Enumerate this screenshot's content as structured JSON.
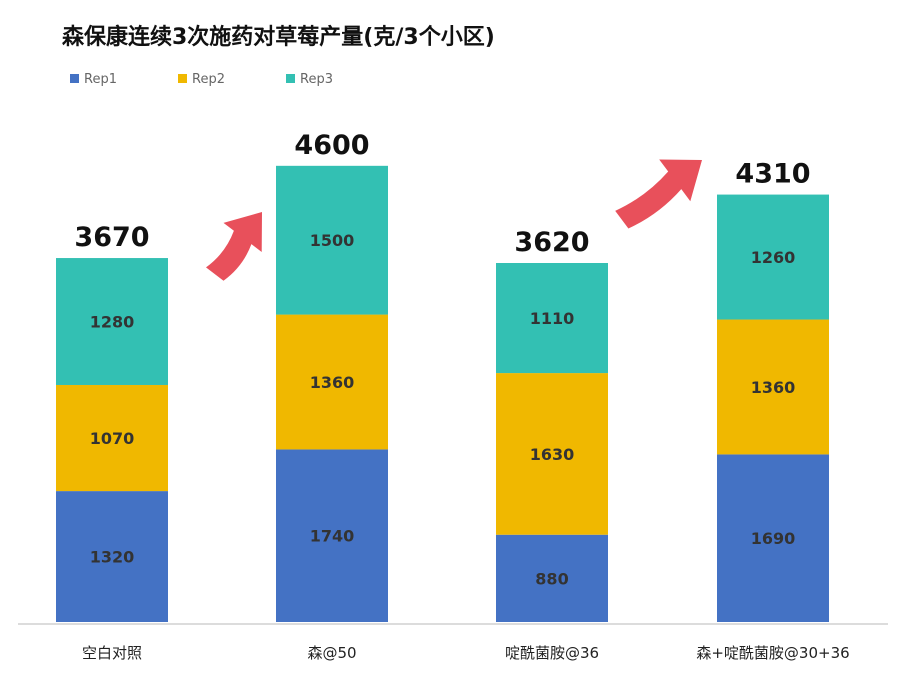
{
  "chart_data": {
    "type": "bar",
    "stacked": true,
    "title": "森保康连续3次施药对草莓产量(克/3个小区)",
    "categories": [
      "空白对照",
      "森@50",
      "啶酰菌胺@36",
      "森+啶酰菌胺@30+36"
    ],
    "series": [
      {
        "name": "Rep1",
        "color": "#4472C4",
        "values": [
          1320,
          1740,
          880,
          1690
        ]
      },
      {
        "name": "Rep2",
        "color": "#F0B800",
        "values": [
          1070,
          1360,
          1630,
          1360
        ]
      },
      {
        "name": "Rep3",
        "color": "#33C0B3",
        "values": [
          1280,
          1500,
          1110,
          1260
        ]
      }
    ],
    "totals": [
      "3670",
      "4600",
      "3620",
      "4310"
    ],
    "legend_position": "top-left",
    "grid": false,
    "ylim": [
      0,
      4600
    ],
    "annotations": [
      {
        "type": "arrow",
        "from_category": 0,
        "to_category": 1,
        "color": "#E8505B"
      },
      {
        "type": "arrow",
        "from_category": 2,
        "to_category": 3,
        "color": "#E8505B"
      }
    ]
  }
}
